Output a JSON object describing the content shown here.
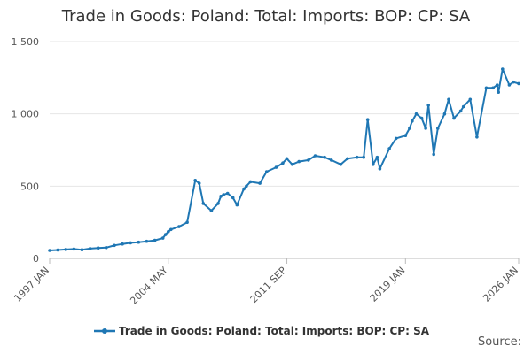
{
  "chart_data": {
    "type": "line",
    "title": "Trade in Goods: Poland: Total: Imports: BOP: CP: SA",
    "xlabel": "",
    "ylabel": "",
    "ylim": [
      0,
      1500
    ],
    "y_ticks": [
      0,
      500,
      1000,
      1500
    ],
    "y_tick_labels": [
      "0",
      "500",
      "1 000",
      "1 500"
    ],
    "x_ticks": [
      "1997-01",
      "2004-05",
      "2011-09",
      "2019-01",
      "2026-01"
    ],
    "x_tick_labels": [
      "1997 JAN",
      "2004 MAY",
      "2011 SEP",
      "2019 JAN",
      "2026 JAN"
    ],
    "legend": "bottom",
    "grid": "horizontal",
    "color": "#1f77b4",
    "series": [
      {
        "name": "Trade in Goods: Poland: Total: Imports: BOP: CP: SA",
        "x": [
          "1997-01",
          "1997-07",
          "1998-01",
          "1998-07",
          "1999-01",
          "1999-07",
          "2000-01",
          "2000-07",
          "2001-01",
          "2001-07",
          "2002-01",
          "2002-07",
          "2003-01",
          "2003-07",
          "2004-01",
          "2004-03",
          "2004-05",
          "2004-07",
          "2005-01",
          "2005-07",
          "2006-01",
          "2006-04",
          "2006-07",
          "2007-01",
          "2007-06",
          "2007-08",
          "2007-10",
          "2008-01",
          "2008-05",
          "2008-08",
          "2009-01",
          "2009-03",
          "2009-06",
          "2010-01",
          "2010-06",
          "2011-01",
          "2011-06",
          "2011-09",
          "2012-01",
          "2012-06",
          "2013-01",
          "2013-06",
          "2014-01",
          "2014-06",
          "2015-01",
          "2015-06",
          "2016-01",
          "2016-06",
          "2016-09",
          "2017-01",
          "2017-04",
          "2017-06",
          "2018-01",
          "2018-06",
          "2019-01",
          "2019-04",
          "2019-06",
          "2019-09",
          "2020-01",
          "2020-04",
          "2020-06",
          "2020-10",
          "2021-01",
          "2021-06",
          "2021-09",
          "2022-01",
          "2022-06",
          "2022-08",
          "2023-01",
          "2023-06",
          "2024-01",
          "2024-06",
          "2024-09",
          "2024-10",
          "2025-01",
          "2025-06",
          "2025-09",
          "2026-01"
        ],
        "values": [
          55,
          58,
          62,
          65,
          60,
          68,
          72,
          75,
          90,
          100,
          108,
          112,
          118,
          125,
          140,
          165,
          185,
          200,
          220,
          250,
          540,
          520,
          380,
          330,
          380,
          430,
          440,
          450,
          420,
          370,
          480,
          500,
          530,
          520,
          600,
          630,
          660,
          690,
          650,
          670,
          680,
          710,
          700,
          680,
          650,
          690,
          700,
          700,
          960,
          650,
          700,
          620,
          760,
          830,
          850,
          900,
          950,
          1000,
          970,
          900,
          1060,
          720,
          900,
          1000,
          1100,
          970,
          1020,
          1050,
          1100,
          840,
          1180,
          1180,
          1200,
          1150,
          1310,
          1200,
          1220,
          1210
        ]
      }
    ]
  },
  "source_label": "Source:"
}
